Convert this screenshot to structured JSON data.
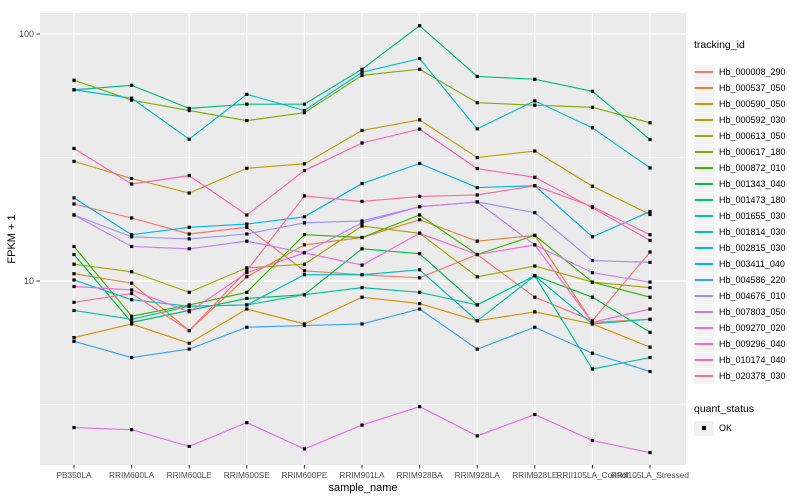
{
  "chart_data": {
    "type": "line",
    "title": "",
    "xlabel": "sample_name",
    "ylabel": "FPKM + 1",
    "y_scale": "log10",
    "ylim": [
      1.8,
      130
    ],
    "y_ticks": [
      {
        "value": 100,
        "label": "100"
      },
      {
        "value": 10,
        "label": "10"
      }
    ],
    "y_minor_ticks": [
      31.623,
      3.162
    ],
    "grid": true,
    "legend_position": "right",
    "panel_bg": "#EBEBEB",
    "grid_color": "#FFFFFF",
    "tick_label_color": "#4D4D4D",
    "point_color": "#000000",
    "categories": [
      "PB350LA",
      "RRIM600LA",
      "RRIM600LE",
      "RRIM600SE",
      "RRIM600PE",
      "RRIM901LA",
      "RRIM928BA",
      "RRIM928LA",
      "RRIM928LE",
      "RRII105LA_Control",
      "RRII105LA_Stressed"
    ],
    "series": [
      {
        "name": "Hb_000008_290",
        "color": "#F8766D",
        "values": [
          20.5,
          18.0,
          15.5,
          16.5,
          11.0,
          10.6,
          10.3,
          12.8,
          8.6,
          6.9,
          13.1
        ]
      },
      {
        "name": "Hb_000537_050",
        "color": "#EA8331",
        "values": [
          10.7,
          9.8,
          6.3,
          10.4,
          14.0,
          15.0,
          17.7,
          14.5,
          15.3,
          6.8,
          7.0
        ]
      },
      {
        "name": "Hb_000590_050",
        "color": "#D89000",
        "values": [
          5.9,
          6.7,
          5.6,
          7.7,
          6.7,
          8.6,
          8.1,
          6.9,
          7.5,
          6.7,
          5.4
        ]
      },
      {
        "name": "Hb_000592_030",
        "color": "#C09B00",
        "values": [
          30.5,
          26.0,
          22.7,
          28.6,
          29.8,
          40.7,
          44.9,
          31.6,
          33.6,
          24.2,
          18.6
        ]
      },
      {
        "name": "Hb_000613_050",
        "color": "#A3A500",
        "values": [
          11.7,
          10.9,
          9.0,
          11.3,
          11.7,
          16.7,
          15.6,
          10.4,
          11.5,
          9.9,
          9.4
        ]
      },
      {
        "name": "Hb_000617_180",
        "color": "#7CAE00",
        "values": [
          65.0,
          54.0,
          49.0,
          44.6,
          48.0,
          68.0,
          72.0,
          52.7,
          51.5,
          50.5,
          43.7
        ]
      },
      {
        "name": "Hb_000872_010",
        "color": "#39B600",
        "values": [
          13.8,
          7.2,
          8.0,
          9.0,
          15.4,
          15.0,
          18.5,
          12.8,
          15.3,
          9.9,
          8.6
        ]
      },
      {
        "name": "Hb_001343_040",
        "color": "#00BB4E",
        "values": [
          12.8,
          6.8,
          7.6,
          8.5,
          8.8,
          13.5,
          12.9,
          8.0,
          10.5,
          8.6,
          6.2
        ]
      },
      {
        "name": "Hb_001473_180",
        "color": "#00BF7D",
        "values": [
          59.4,
          62.0,
          50.0,
          52.0,
          52.0,
          72.0,
          108.0,
          67.3,
          65.6,
          58.6,
          37.4
        ]
      },
      {
        "name": "Hb_001655_030",
        "color": "#00C1A3",
        "values": [
          7.6,
          7.0,
          7.9,
          8.0,
          8.8,
          9.4,
          9.0,
          8.0,
          10.5,
          4.4,
          4.9
        ]
      },
      {
        "name": "Hb_001814_030",
        "color": "#00BFC4",
        "values": [
          10.1,
          8.4,
          7.9,
          8.0,
          10.6,
          10.6,
          11.1,
          6.9,
          10.5,
          6.7,
          7.0
        ]
      },
      {
        "name": "Hb_002815_030",
        "color": "#00BAE0",
        "values": [
          59.4,
          55.0,
          37.5,
          57.0,
          49.0,
          70.0,
          79.5,
          41.3,
          53.6,
          41.7,
          28.7
        ]
      },
      {
        "name": "Hb_003411_040",
        "color": "#00B0F6",
        "values": [
          21.7,
          15.4,
          16.5,
          17.0,
          18.2,
          24.8,
          29.9,
          23.9,
          24.3,
          15.1,
          19.1
        ]
      },
      {
        "name": "Hb_004586_220",
        "color": "#35A2FF",
        "values": [
          5.7,
          4.9,
          5.3,
          6.5,
          6.6,
          6.7,
          7.7,
          5.3,
          6.5,
          5.1,
          4.3
        ]
      },
      {
        "name": "Hb_004676_010",
        "color": "#9590FF",
        "values": [
          18.5,
          15.1,
          14.8,
          15.5,
          17.2,
          17.5,
          20.0,
          20.9,
          18.9,
          12.1,
          11.9
        ]
      },
      {
        "name": "Hb_007803_050",
        "color": "#C77CFF",
        "values": [
          18.5,
          13.8,
          13.5,
          14.5,
          13.0,
          17.2,
          20.0,
          20.9,
          14.0,
          10.8,
          9.9
        ]
      },
      {
        "name": "Hb_009270_020",
        "color": "#E76BF3",
        "values": [
          2.55,
          2.5,
          2.14,
          2.67,
          2.09,
          2.61,
          3.1,
          2.36,
          2.88,
          2.26,
          2.02
        ]
      },
      {
        "name": "Hb_009296_040",
        "color": "#FA62DB",
        "values": [
          9.5,
          9.2,
          7.5,
          10.8,
          13.0,
          11.6,
          15.6,
          12.8,
          14.0,
          6.8,
          7.7
        ]
      },
      {
        "name": "Hb_010174_040",
        "color": "#FF62BC",
        "values": [
          34.4,
          24.7,
          26.7,
          18.5,
          28.0,
          36.2,
          41.2,
          28.5,
          26.3,
          19.8,
          14.6
        ]
      },
      {
        "name": "Hb_020378_030",
        "color": "#FF6A98",
        "values": [
          8.2,
          8.9,
          6.3,
          11.0,
          22.1,
          21.0,
          22.0,
          22.3,
          24.3,
          20.0,
          15.4
        ]
      }
    ]
  },
  "legend": {
    "tracking_title": "tracking_id",
    "quant_title": "quant_status",
    "quant_items": [
      {
        "label": "OK"
      }
    ]
  }
}
